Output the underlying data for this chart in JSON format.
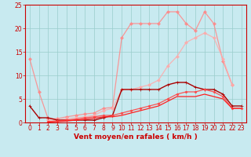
{
  "x": [
    0,
    1,
    2,
    3,
    4,
    5,
    6,
    7,
    8,
    9,
    10,
    11,
    12,
    13,
    14,
    15,
    16,
    17,
    18,
    19,
    20,
    21,
    22,
    23
  ],
  "series": [
    {
      "name": "line_light_pink",
      "color": "#FF8888",
      "alpha": 0.85,
      "linewidth": 0.9,
      "marker": "D",
      "markersize": 2.0,
      "values": [
        13.5,
        6.5,
        0.8,
        0.8,
        1.2,
        1.5,
        1.8,
        2.0,
        3.0,
        3.2,
        18.0,
        21.0,
        21.0,
        21.0,
        21.0,
        23.5,
        23.5,
        21.0,
        19.5,
        23.5,
        21.0,
        13.0,
        8.0,
        null
      ]
    },
    {
      "name": "line_pink",
      "color": "#FFAAAA",
      "alpha": 0.85,
      "linewidth": 0.9,
      "marker": "D",
      "markersize": 2.0,
      "values": [
        null,
        null,
        0.5,
        0.5,
        0.8,
        1.0,
        1.2,
        1.5,
        2.5,
        3.0,
        7.0,
        7.0,
        7.5,
        8.0,
        9.0,
        12.0,
        14.0,
        17.0,
        18.0,
        19.0,
        18.0,
        13.5,
        8.0,
        null
      ]
    },
    {
      "name": "line_dark_red",
      "color": "#AA0000",
      "alpha": 1.0,
      "linewidth": 1.0,
      "marker": "+",
      "markersize": 3.5,
      "values": [
        3.5,
        1.0,
        1.0,
        0.5,
        0.5,
        0.5,
        0.5,
        0.5,
        1.0,
        1.5,
        7.0,
        7.0,
        7.0,
        7.0,
        7.0,
        8.0,
        8.5,
        8.5,
        7.5,
        7.0,
        7.0,
        6.0,
        3.5,
        3.5
      ]
    },
    {
      "name": "line_medium_red",
      "color": "#FF4444",
      "alpha": 0.9,
      "linewidth": 0.9,
      "marker": "D",
      "markersize": 1.5,
      "values": [
        null,
        null,
        0.2,
        0.3,
        0.5,
        0.7,
        1.0,
        1.2,
        1.5,
        1.5,
        2.0,
        2.5,
        3.0,
        3.5,
        4.0,
        5.0,
        6.0,
        6.5,
        6.5,
        7.0,
        6.5,
        5.5,
        3.0,
        3.0
      ]
    },
    {
      "name": "line_bright_red",
      "color": "#FF2222",
      "alpha": 1.0,
      "linewidth": 0.9,
      "marker": null,
      "markersize": 1.5,
      "values": [
        null,
        null,
        0.1,
        0.2,
        0.3,
        0.5,
        0.7,
        0.9,
        1.2,
        1.2,
        1.5,
        2.0,
        2.5,
        3.0,
        3.5,
        4.5,
        5.5,
        5.5,
        5.5,
        6.0,
        5.5,
        5.0,
        3.0,
        3.0
      ]
    }
  ],
  "xlabel": "Vent moyen/en rafales ( km/h )",
  "xlim_min": -0.5,
  "xlim_max": 23.5,
  "ylim_min": 0,
  "ylim_max": 25,
  "yticks": [
    0,
    5,
    10,
    15,
    20,
    25
  ],
  "xticks": [
    0,
    1,
    2,
    3,
    4,
    5,
    6,
    7,
    8,
    9,
    10,
    11,
    12,
    13,
    14,
    15,
    16,
    17,
    18,
    19,
    20,
    21,
    22,
    23
  ],
  "bg_color": "#C8EAF0",
  "grid_color": "#99CCCC",
  "xlabel_color": "#CC0000",
  "tick_color": "#CC0000",
  "spine_color": "#CC0000",
  "xlabel_fontsize": 6.5,
  "tick_fontsize": 5.5
}
